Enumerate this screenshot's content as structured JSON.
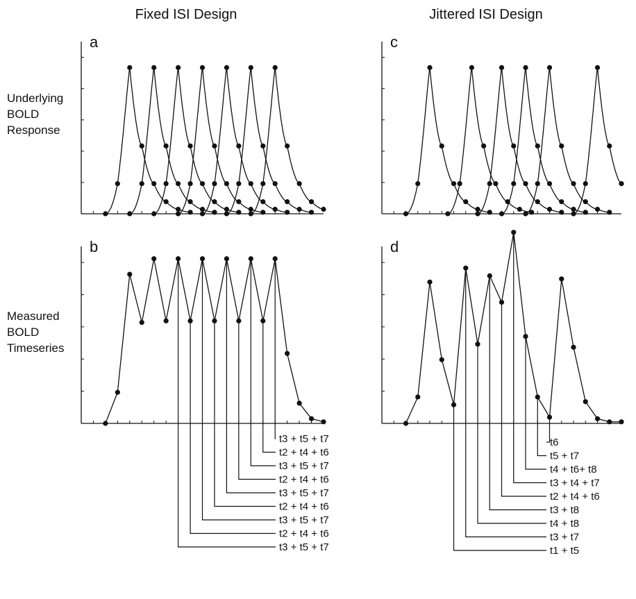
{
  "column_titles": [
    "Fixed ISI Design",
    "Jittered ISI Design"
  ],
  "row_labels": {
    "top": [
      "Underlying",
      "BOLD",
      "Response"
    ],
    "bottom": [
      "Measured",
      "BOLD",
      "Timeseries"
    ]
  },
  "chart_data": [
    {
      "id": "a",
      "type": "line",
      "title": "",
      "panel_letter": "a",
      "xlabel": "",
      "ylabel": "",
      "xlim": [
        0,
        20
      ],
      "ylim": [
        0,
        1.05
      ],
      "onsets": [
        2,
        4,
        6,
        8,
        10,
        12,
        14
      ],
      "hrf_samples": [
        0,
        0.2,
        0.97,
        0.45,
        0.2,
        0.08,
        0.03,
        0.01
      ],
      "grid": false
    },
    {
      "id": "b",
      "type": "line",
      "title": "",
      "panel_letter": "b",
      "xlabel": "",
      "ylabel": "",
      "xlim": [
        0,
        20
      ],
      "ylim": [
        0,
        1.05
      ],
      "x": [
        2,
        3,
        4,
        5,
        6,
        7,
        8,
        9,
        10,
        11,
        12,
        13,
        14,
        15,
        16,
        17,
        18,
        19,
        20
      ],
      "y": [
        0,
        0.2,
        0.96,
        0.65,
        1.06,
        0.66,
        1.06,
        0.66,
        1.06,
        0.66,
        1.06,
        0.66,
        1.06,
        0.66,
        1.06,
        0.45,
        0.13,
        0.03,
        0.01
      ],
      "callouts": [
        {
          "x": 16,
          "label": "t3 + t5 + t7"
        },
        {
          "x": 15,
          "label": "t2 + t4 + t6"
        },
        {
          "x": 14,
          "label": "t3 + t5 + t7"
        },
        {
          "x": 13,
          "label": "t2 + t4 + t6"
        },
        {
          "x": 12,
          "label": "t3 + t5 + t7"
        },
        {
          "x": 11,
          "label": "t2 + t4 + t6"
        },
        {
          "x": 10,
          "label": "t3 + t5 + t7"
        },
        {
          "x": 9,
          "label": "t2 + t4 + t6"
        },
        {
          "x": 8,
          "label": "t3 + t5 + t7"
        }
      ],
      "grid": false
    },
    {
      "id": "c",
      "type": "line",
      "title": "",
      "panel_letter": "c",
      "xlabel": "",
      "ylabel": "",
      "xlim": [
        0,
        20
      ],
      "ylim": [
        0,
        1.05
      ],
      "onsets": [
        2,
        5.5,
        8,
        10,
        12,
        16
      ],
      "hrf_samples": [
        0,
        0.2,
        0.97,
        0.45,
        0.2,
        0.08,
        0.03,
        0.01
      ],
      "grid": false
    },
    {
      "id": "d",
      "type": "line",
      "title": "",
      "panel_letter": "d",
      "xlabel": "",
      "ylabel": "",
      "xlim": [
        0,
        20
      ],
      "ylim": [
        0,
        1.05
      ],
      "x": [
        2,
        3,
        4,
        5,
        6,
        7,
        8,
        9,
        10,
        11,
        12,
        13,
        14,
        15,
        16,
        17,
        18,
        19,
        20
      ],
      "y": [
        0,
        0.17,
        0.91,
        0.41,
        0.12,
        1.0,
        0.51,
        0.95,
        0.78,
        1.23,
        0.56,
        0.17,
        0.04,
        0.93,
        0.49,
        0.14,
        0.03,
        0.01,
        0.01
      ],
      "callouts": [
        {
          "x": 14,
          "label": "t6"
        },
        {
          "x": 13,
          "label": "t5 + t7"
        },
        {
          "x": 12,
          "label": "t4 + t6+ t8"
        },
        {
          "x": 11,
          "label": "t3 + t4 + t7"
        },
        {
          "x": 10,
          "label": "t2 + t4 + t6"
        },
        {
          "x": 9,
          "label": "t3 + t8"
        },
        {
          "x": 8,
          "label": "t4 + t8"
        },
        {
          "x": 7,
          "label": "t3 + t7"
        },
        {
          "x": 6,
          "label": "t1 + t5"
        }
      ],
      "grid": false
    }
  ]
}
